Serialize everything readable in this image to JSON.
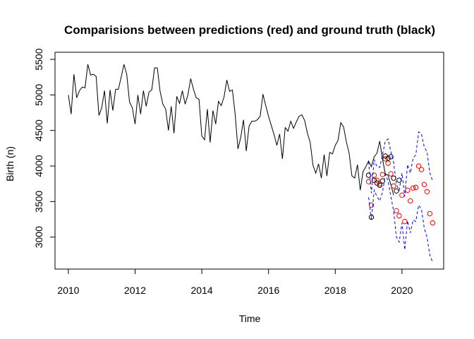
{
  "chart_data": {
    "type": "line",
    "title": "Comparisions between predictions (red) and ground truth (black)",
    "xlabel": "Time",
    "ylabel": "Birth (n)",
    "xlim": [
      2009.6,
      2021.25
    ],
    "ylim": [
      2550,
      5600
    ],
    "x_ticks": [
      2010,
      2012,
      2014,
      2016,
      2018,
      2020
    ],
    "y_ticks": [
      3000,
      3500,
      4000,
      4500,
      5000,
      5500
    ],
    "grid": false,
    "legend": "none",
    "colors": {
      "history": "#000000",
      "ground_truth": "#000000",
      "predictions": "#ff0000",
      "intervals": "#0000ff"
    },
    "series": [
      {
        "role": "history",
        "style": "solid-line",
        "x_start": 2010,
        "step": 0.08333,
        "values": [
          5000,
          4730,
          5290,
          4960,
          5060,
          5110,
          5100,
          5430,
          5280,
          5290,
          5260,
          4710,
          4820,
          5060,
          4600,
          5070,
          4780,
          5080,
          5080,
          5250,
          5430,
          5290,
          4900,
          4820,
          4590,
          5000,
          4730,
          5060,
          4840,
          5040,
          5070,
          5380,
          5380,
          5050,
          4870,
          4800,
          4500,
          4840,
          4460,
          4980,
          4880,
          5060,
          4870,
          5000,
          5230,
          5080,
          4960,
          4940,
          4420,
          4370,
          4800,
          4330,
          4780,
          4590,
          4910,
          4850,
          4970,
          5210,
          5050,
          5070,
          4730,
          4240,
          4400,
          4650,
          4210,
          4560,
          4630,
          4630,
          4650,
          4700,
          5010,
          4850,
          4700,
          4570,
          4440,
          4290,
          4450,
          4100,
          4540,
          4490,
          4630,
          4530,
          4620,
          4700,
          4720,
          4640,
          4460,
          4330,
          4010,
          3900,
          4030,
          3830,
          4160,
          3860,
          4190,
          4170,
          4290,
          4360,
          4610,
          4550,
          4340,
          4180,
          3860,
          3830,
          4020,
          3660,
          3920,
          3990,
          4070,
          3990,
          4130,
          4180,
          4350,
          4100,
          3890,
          3870,
          3740,
          3590
        ]
      },
      {
        "role": "ground_truth",
        "style": "points",
        "x_start": 2019.0,
        "step": 0.08333,
        "values": [
          3870,
          3280,
          3800,
          3760,
          3730,
          3790,
          4140,
          4110,
          4130,
          3830,
          3650,
          3800
        ]
      },
      {
        "role": "predictions",
        "style": "points",
        "x_start": 2019.0,
        "step": 0.08333,
        "values": [
          3780,
          3450,
          3870,
          3800,
          3750,
          3880,
          4100,
          4040,
          3890,
          3720,
          3370,
          3300,
          3590,
          3220,
          3660,
          3510,
          3690,
          3700,
          4000,
          3950,
          3740,
          3640,
          3330,
          3200
        ]
      },
      {
        "role": "upper_interval",
        "style": "dashed-line",
        "x_start": 2019.0,
        "step": 0.08333,
        "values": [
          4060,
          3620,
          4090,
          3990,
          3980,
          4160,
          4350,
          4380,
          4200,
          4050,
          3740,
          3660,
          3900,
          3570,
          4020,
          3900,
          4110,
          4160,
          4480,
          4450,
          4270,
          4200,
          3910,
          3790
        ]
      },
      {
        "role": "lower_interval",
        "style": "dashed-line",
        "x_start": 2019.0,
        "step": 0.08333,
        "values": [
          3560,
          3250,
          3660,
          3570,
          3510,
          3630,
          3880,
          3790,
          3570,
          3370,
          3000,
          2930,
          3200,
          2820,
          3230,
          3060,
          3240,
          3220,
          3450,
          3390,
          3130,
          3000,
          2750,
          2650
        ]
      }
    ]
  }
}
